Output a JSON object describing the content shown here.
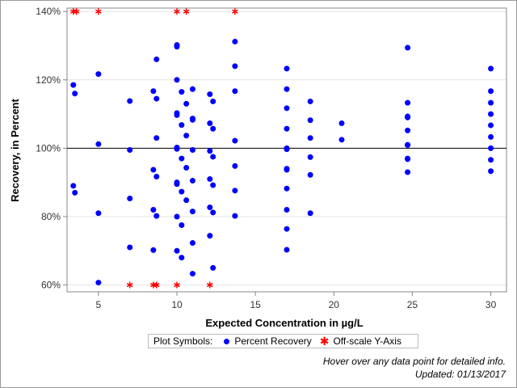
{
  "chart_data": {
    "type": "scatter",
    "xlabel": "Expected Concentration in µg/L",
    "ylabel": "Recovery, in Percent",
    "xlim": [
      3,
      31
    ],
    "ylim": [
      58,
      141
    ],
    "x_ticks": [
      5,
      10,
      15,
      20,
      25,
      30
    ],
    "y_ticks": [
      60,
      80,
      100,
      120,
      140
    ],
    "y_tick_labels": [
      "60%",
      "80%",
      "100%",
      "120%",
      "140%"
    ],
    "reference_line_y": 100,
    "grid": "horizontal",
    "colors": {
      "recovery": "#0000ff",
      "offscale": "#ff0000",
      "reference": "#000000"
    },
    "series": [
      {
        "name": "Percent Recovery",
        "marker": "circle",
        "points": [
          [
            3.4,
            118.5
          ],
          [
            3.5,
            116
          ],
          [
            3.4,
            89
          ],
          [
            3.5,
            87
          ],
          [
            5,
            121.7
          ],
          [
            5,
            101.2
          ],
          [
            5,
            81
          ],
          [
            5,
            60.7
          ],
          [
            7,
            113.8
          ],
          [
            7,
            99.5
          ],
          [
            7,
            85.3
          ],
          [
            7,
            71
          ],
          [
            8.5,
            116.7
          ],
          [
            8.5,
            93.7
          ],
          [
            8.5,
            82
          ],
          [
            8.5,
            70.2
          ],
          [
            8.7,
            126
          ],
          [
            8.7,
            114.5
          ],
          [
            8.7,
            103
          ],
          [
            8.7,
            91.7
          ],
          [
            8.7,
            80.2
          ],
          [
            10,
            130.2
          ],
          [
            10,
            129.7
          ],
          [
            10,
            120
          ],
          [
            10,
            110.3
          ],
          [
            10,
            109.7
          ],
          [
            10,
            100.2
          ],
          [
            10,
            99.8
          ],
          [
            10,
            90
          ],
          [
            10,
            89.5
          ],
          [
            10,
            80
          ],
          [
            10,
            70
          ],
          [
            10.3,
            116.5
          ],
          [
            10.3,
            106.8
          ],
          [
            10.3,
            97
          ],
          [
            10.3,
            87.3
          ],
          [
            10.3,
            77.5
          ],
          [
            10.3,
            68
          ],
          [
            10.6,
            113
          ],
          [
            10.6,
            103.7
          ],
          [
            10.6,
            94.3
          ],
          [
            10.6,
            84.8
          ],
          [
            11,
            117.3
          ],
          [
            11,
            108.7
          ],
          [
            11,
            108.3
          ],
          [
            11,
            99.5
          ],
          [
            11,
            90.5
          ],
          [
            11,
            81.5
          ],
          [
            11,
            72.3
          ],
          [
            11,
            63.3
          ],
          [
            12.1,
            115.8
          ],
          [
            12.1,
            107.3
          ],
          [
            12.1,
            99.2
          ],
          [
            12.1,
            91
          ],
          [
            12.1,
            82.7
          ],
          [
            12.1,
            74.4
          ],
          [
            12.3,
            113.7
          ],
          [
            12.3,
            105.7
          ],
          [
            12.3,
            97.5
          ],
          [
            12.3,
            89.2
          ],
          [
            12.3,
            81.2
          ],
          [
            12.3,
            65
          ],
          [
            13.7,
            131.2
          ],
          [
            13.7,
            124
          ],
          [
            13.7,
            116.7
          ],
          [
            13.7,
            102.2
          ],
          [
            13.7,
            94.8
          ],
          [
            13.7,
            87.6
          ],
          [
            13.7,
            80.2
          ],
          [
            17,
            123.3
          ],
          [
            17,
            117.3
          ],
          [
            17,
            111.7
          ],
          [
            17,
            105.7
          ],
          [
            17,
            100
          ],
          [
            17,
            99.7
          ],
          [
            17,
            94
          ],
          [
            17,
            93.7
          ],
          [
            17,
            88.2
          ],
          [
            17,
            82
          ],
          [
            17,
            76.4
          ],
          [
            17,
            70.3
          ],
          [
            18.5,
            113.7
          ],
          [
            18.5,
            108.2
          ],
          [
            18.5,
            103
          ],
          [
            18.5,
            97.4
          ],
          [
            18.5,
            92.2
          ],
          [
            18.5,
            81
          ],
          [
            20.5,
            107.3
          ],
          [
            20.5,
            102.5
          ],
          [
            24.7,
            129.4
          ],
          [
            24.7,
            113.3
          ],
          [
            24.7,
            109.3
          ],
          [
            24.7,
            109
          ],
          [
            24.7,
            105.2
          ],
          [
            24.7,
            101
          ],
          [
            24.7,
            100.9
          ],
          [
            24.7,
            97
          ],
          [
            24.7,
            96.8
          ],
          [
            24.7,
            93
          ],
          [
            30,
            123.3
          ],
          [
            30,
            116.7
          ],
          [
            30,
            113.3
          ],
          [
            30,
            110
          ],
          [
            30,
            106.7
          ],
          [
            30,
            103.3
          ],
          [
            30,
            100
          ],
          [
            30,
            96.6
          ],
          [
            30,
            93.3
          ]
        ]
      },
      {
        "name": "Off-scale Y-Axis",
        "marker": "asterisk",
        "points": [
          [
            3.4,
            140
          ],
          [
            3.6,
            140
          ],
          [
            5,
            140
          ],
          [
            10,
            140
          ],
          [
            10.6,
            140
          ],
          [
            13.7,
            140
          ],
          [
            7,
            60
          ],
          [
            8.5,
            60
          ],
          [
            8.7,
            60
          ],
          [
            10,
            60
          ],
          [
            12.1,
            60
          ]
        ]
      }
    ]
  },
  "legend": {
    "title": "Plot Symbols:",
    "items": [
      {
        "label": "Percent Recovery",
        "symbol": "circle-icon"
      },
      {
        "label": "Off-scale Y-Axis",
        "symbol": "asterisk-icon"
      }
    ]
  },
  "notes": {
    "hover": "Hover over any data point for detailed info.",
    "updated": "Updated: 01/13/2017"
  }
}
